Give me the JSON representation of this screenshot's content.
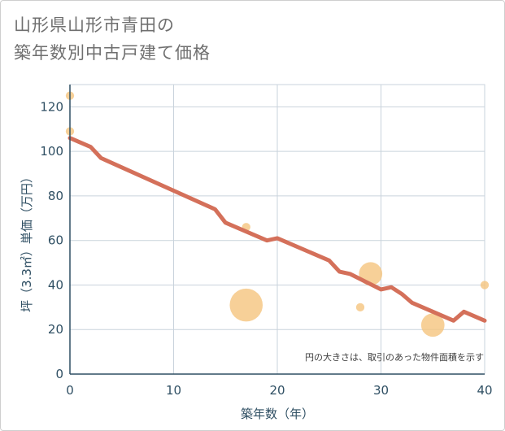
{
  "title_line1": "山形県山形市青田の",
  "title_line2": "築年数別中古戸建て価格",
  "chart_data": {
    "type": "scatter",
    "title": "山形県山形市青田の築年数別中古戸建て価格",
    "xlabel": "築年数（年）",
    "ylabel": "坪（3.3㎡）単価（万円）",
    "xlim": [
      0,
      40
    ],
    "ylim": [
      0,
      130
    ],
    "xticks": [
      0,
      10,
      20,
      30,
      40
    ],
    "yticks": [
      0,
      20,
      40,
      60,
      80,
      100,
      120
    ],
    "grid": true,
    "note": "円の大きさは、取引のあった物件面積を示す",
    "colors": {
      "bubble": "#f5c47e",
      "line": "#d4705a",
      "grid": "#c9d3dc",
      "axis": "#2f4f63"
    },
    "bubbles": [
      {
        "x": 0,
        "y": 125,
        "size": 1
      },
      {
        "x": 0,
        "y": 109,
        "size": 1
      },
      {
        "x": 17,
        "y": 66,
        "size": 1
      },
      {
        "x": 17,
        "y": 31,
        "size": 4
      },
      {
        "x": 28,
        "y": 30,
        "size": 1
      },
      {
        "x": 29,
        "y": 45,
        "size": 2
      },
      {
        "x": 35,
        "y": 22,
        "size": 2
      },
      {
        "x": 40,
        "y": 40,
        "size": 1
      }
    ],
    "trend": {
      "name": "trend",
      "x": [
        0,
        2,
        3,
        14,
        15,
        19,
        20,
        25,
        26,
        27,
        30,
        31,
        32,
        33,
        35,
        37,
        38,
        40
      ],
      "y": [
        106,
        102,
        97,
        74,
        68,
        60,
        61,
        51,
        46,
        45,
        38,
        39,
        36,
        32,
        28,
        24,
        28,
        24
      ]
    }
  }
}
